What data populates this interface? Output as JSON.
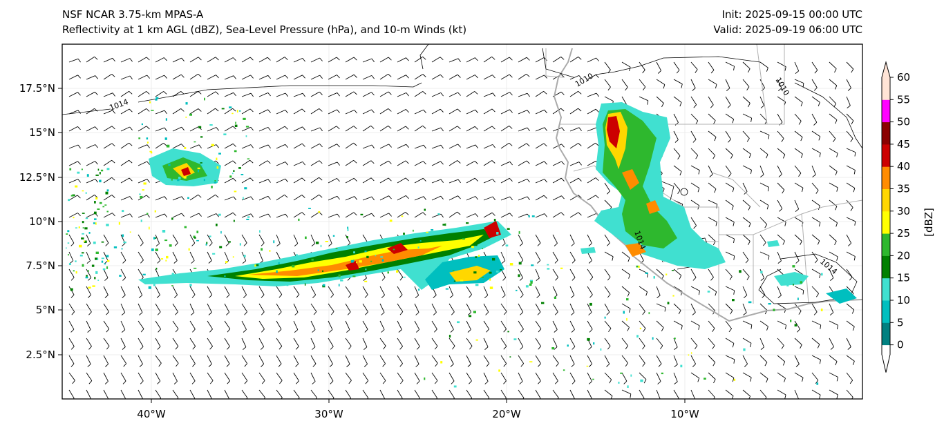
{
  "header": {
    "model": "NSF NCAR 3.75-km MPAS-A",
    "fields": "Reflectivity at 1 km AGL (dBZ), Sea-Level Pressure (hPa), and 10-m Winds (kt)",
    "init": "Init: 2025-09-15 00:00 UTC",
    "valid": "Valid: 2025-09-19 06:00 UTC"
  },
  "map": {
    "lon_range": [
      -45,
      0
    ],
    "lat_range": [
      0,
      20
    ],
    "lon_ticks": [
      {
        "value": -40,
        "label": "40°W"
      },
      {
        "value": -30,
        "label": "30°W"
      },
      {
        "value": -20,
        "label": "20°W"
      },
      {
        "value": -10,
        "label": "10°W"
      }
    ],
    "lat_ticks": [
      {
        "value": 2.5,
        "label": "2.5°N"
      },
      {
        "value": 5,
        "label": "5°N"
      },
      {
        "value": 7.5,
        "label": "7.5°N"
      },
      {
        "value": 10,
        "label": "10°N"
      },
      {
        "value": 12.5,
        "label": "12.5°N"
      },
      {
        "value": 15,
        "label": "15°N"
      },
      {
        "value": 17.5,
        "label": "17.5°N"
      }
    ],
    "isobar_labels": [
      "1014",
      "1010",
      "1010",
      "1014",
      "1014"
    ]
  },
  "colorbar": {
    "label": "[dBZ]",
    "ticks": [
      "0",
      "5",
      "10",
      "15",
      "20",
      "25",
      "30",
      "35",
      "40",
      "45",
      "50",
      "55",
      "60"
    ],
    "colors": [
      "#008080",
      "#00bfbf",
      "#40e0d0",
      "#008000",
      "#2eb82e",
      "#ffff00",
      "#ffd700",
      "#ff8c00",
      "#cc0000",
      "#8b0000",
      "#ff00ff",
      "#ffe4d6"
    ]
  }
}
